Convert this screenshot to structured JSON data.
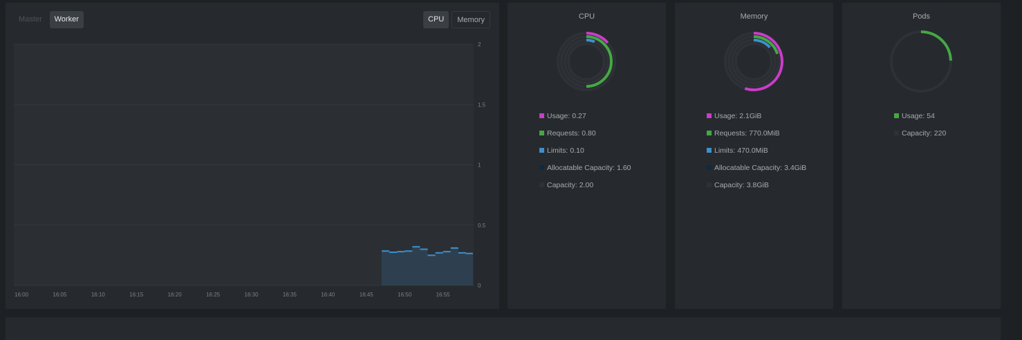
{
  "node_tabs": [
    {
      "label": "Master",
      "active": false
    },
    {
      "label": "Worker",
      "active": true
    }
  ],
  "metric_tabs": [
    {
      "label": "CPU",
      "active": true
    },
    {
      "label": "Memory",
      "active": false
    }
  ],
  "chart_data": {
    "type": "area",
    "x": [
      "16:48",
      "16:49",
      "16:50",
      "16:51",
      "16:52",
      "16:53",
      "16:54",
      "16:55",
      "16:56",
      "16:57",
      "16:58",
      "16:59"
    ],
    "series": [
      {
        "values": [
          0.285,
          0.275,
          0.28,
          0.285,
          0.32,
          0.3,
          0.25,
          0.27,
          0.28,
          0.31,
          0.27,
          0.265
        ]
      }
    ],
    "x_ticks": [
      "16:00",
      "16:05",
      "16:10",
      "16:15",
      "16:20",
      "16:25",
      "16:30",
      "16:35",
      "16:40",
      "16:45",
      "16:50",
      "16:55"
    ],
    "y_ticks": [
      "2",
      "1.5",
      "1",
      "0.5",
      "0"
    ],
    "ylim": [
      0,
      2
    ],
    "xlim": [
      "16:00",
      "17:00"
    ],
    "grid": true,
    "colors": {
      "line": "#3d90ce",
      "fill": "#2e4050"
    }
  },
  "cpu": {
    "title": "CPU",
    "legend": [
      {
        "label": "Usage:",
        "value": "0.27",
        "color": "#c93dc9"
      },
      {
        "label": "Requests:",
        "value": "0.80",
        "color": "#45a845"
      },
      {
        "label": "Limits:",
        "value": "0.10",
        "color": "#3d90ce"
      },
      {
        "label": "Allocatable Capacity:",
        "value": "1.60",
        "color": "#0e2a44"
      },
      {
        "label": "Capacity:",
        "value": "2.00",
        "color": "#2e3236"
      }
    ]
  },
  "memory": {
    "title": "Memory",
    "legend": [
      {
        "label": "Usage:",
        "value": "2.1GiB",
        "color": "#c93dc9"
      },
      {
        "label": "Requests:",
        "value": "770.0MiB",
        "color": "#45a845"
      },
      {
        "label": "Limits:",
        "value": "470.0MiB",
        "color": "#3d90ce"
      },
      {
        "label": "Allocatable Capacity:",
        "value": "3.4GiB",
        "color": "#0e2a44"
      },
      {
        "label": "Capacity:",
        "value": "3.8GiB",
        "color": "#2e3236"
      }
    ]
  },
  "pods": {
    "title": "Pods",
    "legend": [
      {
        "label": "Usage:",
        "value": "54",
        "color": "#45a845"
      },
      {
        "label": "Capacity:",
        "value": "220",
        "color": "#2e3236"
      }
    ]
  },
  "donut_fractions": {
    "cpu": {
      "usage": 0.135,
      "requests": 0.5,
      "limits": 0.0625
    },
    "memory": {
      "usage": 0.55,
      "requests": 0.2,
      "limits": 0.135
    },
    "pods": {
      "usage": 0.245
    }
  }
}
